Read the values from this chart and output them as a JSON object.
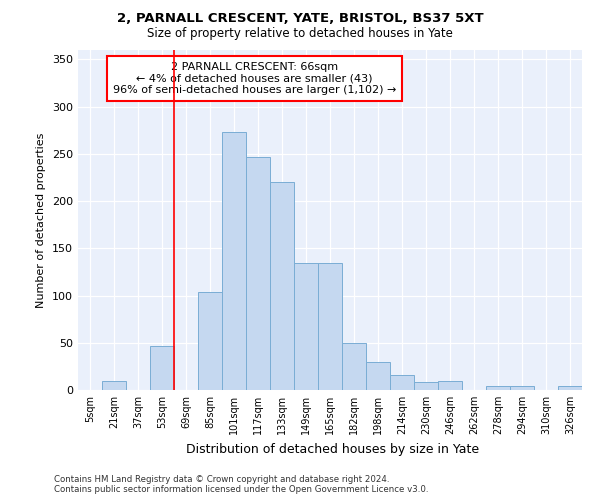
{
  "title1": "2, PARNALL CRESCENT, YATE, BRISTOL, BS37 5XT",
  "title2": "Size of property relative to detached houses in Yate",
  "xlabel": "Distribution of detached houses by size in Yate",
  "ylabel": "Number of detached properties",
  "bin_labels": [
    "5sqm",
    "21sqm",
    "37sqm",
    "53sqm",
    "69sqm",
    "85sqm",
    "101sqm",
    "117sqm",
    "133sqm",
    "149sqm",
    "165sqm",
    "182sqm",
    "198sqm",
    "214sqm",
    "230sqm",
    "246sqm",
    "262sqm",
    "278sqm",
    "294sqm",
    "310sqm",
    "326sqm"
  ],
  "bar_values": [
    0,
    10,
    0,
    47,
    0,
    104,
    273,
    247,
    220,
    135,
    135,
    50,
    30,
    16,
    8,
    10,
    0,
    4,
    4,
    0,
    4
  ],
  "bar_color": "#c5d8f0",
  "bar_edge_color": "#7aadd4",
  "vline_x": 4.0,
  "vline_color": "red",
  "annotation_text": "2 PARNALL CRESCENT: 66sqm\n← 4% of detached houses are smaller (43)\n96% of semi-detached houses are larger (1,102) →",
  "annotation_box_color": "white",
  "annotation_box_edge": "red",
  "ylim": [
    0,
    360
  ],
  "yticks": [
    0,
    50,
    100,
    150,
    200,
    250,
    300,
    350
  ],
  "footer1": "Contains HM Land Registry data © Crown copyright and database right 2024.",
  "footer2": "Contains public sector information licensed under the Open Government Licence v3.0.",
  "bg_color": "#eaf0fb",
  "plot_bg_color": "#eaf0fb"
}
